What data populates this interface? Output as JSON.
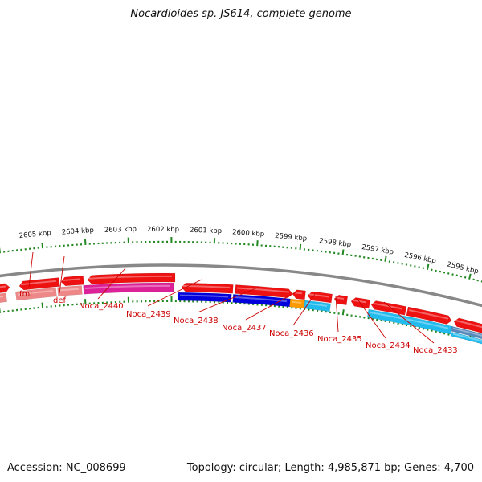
{
  "title": "Nocardioides sp. JS614, complete genome",
  "accession": "Accession: NC_008699",
  "summary": "Topology: circular; Length: 4,985,871 bp; Genes: 4,700",
  "colors": {
    "gene_red": "#ee1111",
    "gene_pink": "#ee8888",
    "gene_magenta": "#dd2299",
    "gene_blue": "#0000dd",
    "gene_orange": "#ff9900",
    "gene_cyan": "#22bbee",
    "gene_slate": "#5588bb",
    "tick_green": "#228822",
    "label_red": "#cc0000",
    "backbone": "#888888"
  },
  "kbp_labels": [
    "2605 kbp",
    "2604 kbp",
    "2603 kbp",
    "2602 kbp",
    "2601 kbp",
    "2600 kbp",
    "2599 kbp",
    "2598 kbp",
    "2597 kbp",
    "2596 kbp",
    "2595 kbp"
  ],
  "gene_labels": [
    "fmt",
    "def",
    "Noca_2440",
    "Noca_2439",
    "Noca_2438",
    "Noca_2437",
    "Noca_2436",
    "Noca_2435",
    "Noca_2434",
    "Noca_2433"
  ]
}
